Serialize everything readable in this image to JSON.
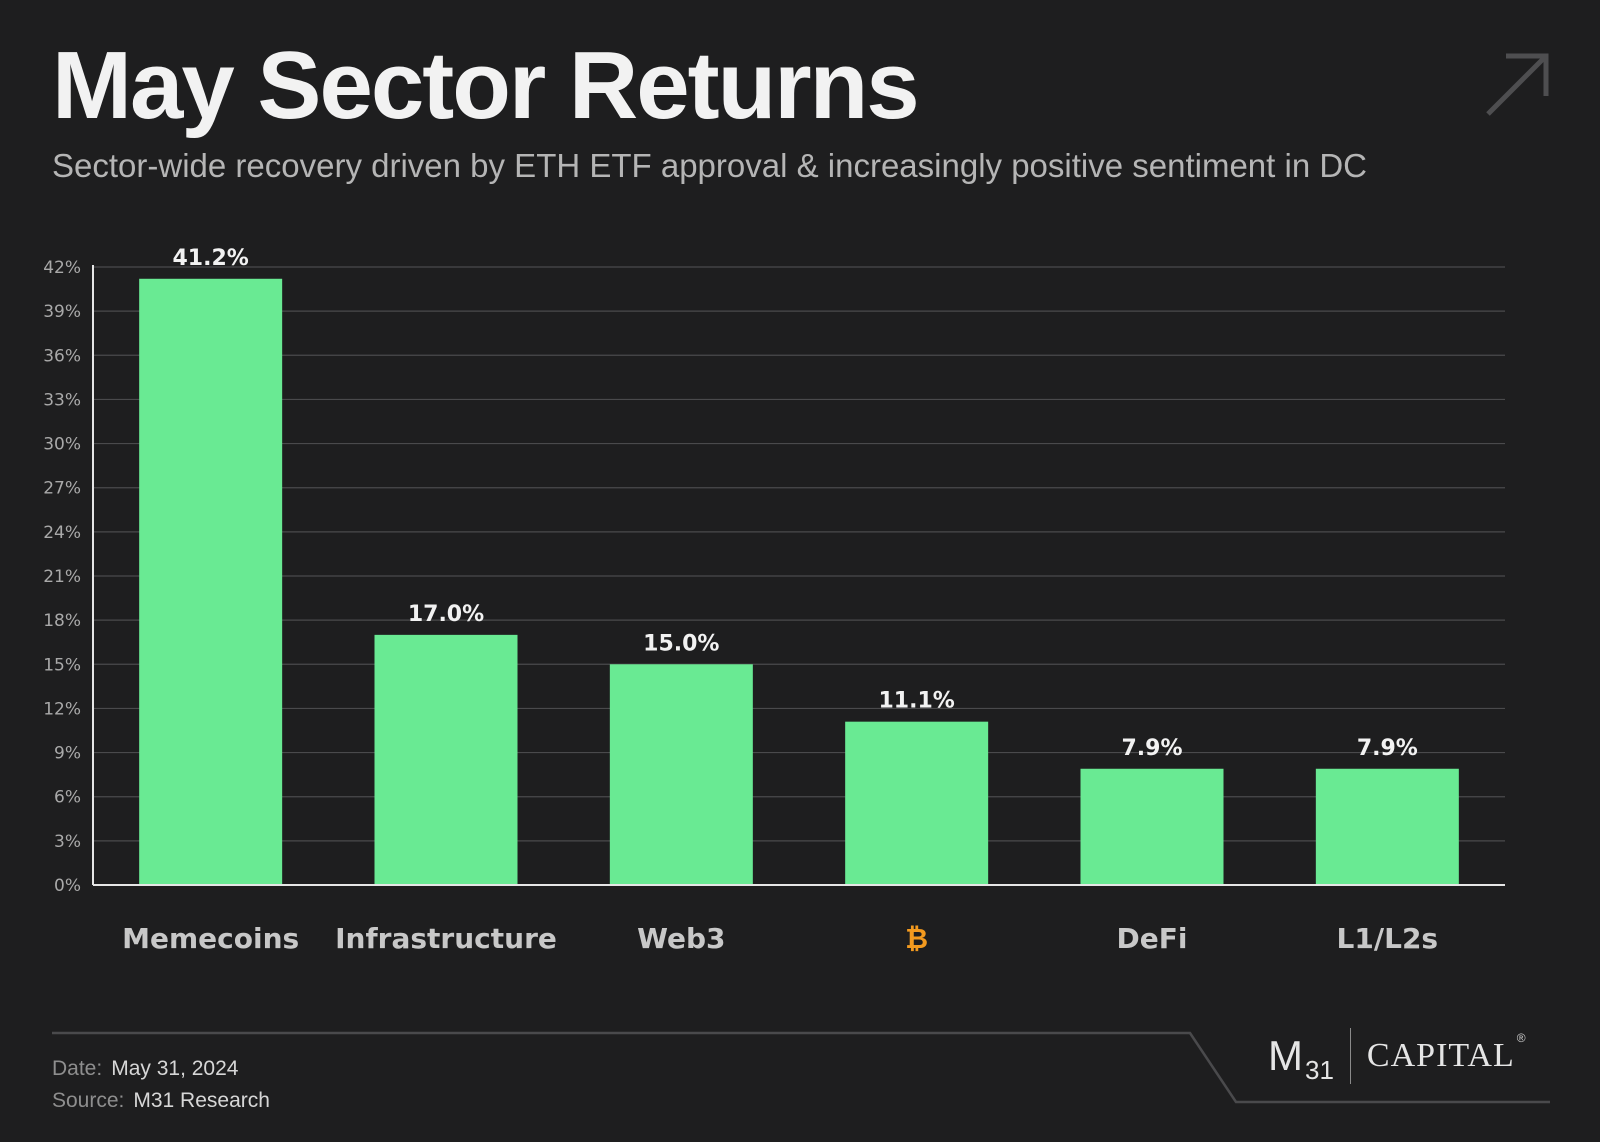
{
  "header": {
    "title": "May Sector Returns",
    "subtitle": "Sector-wide recovery driven by ETH ETF approval & increasingly positive sentiment in DC"
  },
  "chart_data": {
    "type": "bar",
    "categories": [
      "Memecoins",
      "Infrastructure",
      "Web3",
      "₿",
      "DeFi",
      "L1/L2s"
    ],
    "values": [
      41.2,
      17.0,
      15.0,
      11.1,
      7.9,
      7.9
    ],
    "value_labels": [
      "41.2%",
      "17.0%",
      "15.0%",
      "11.1%",
      "7.9%",
      "7.9%"
    ],
    "ylim": [
      0,
      42
    ],
    "y_ticks": [
      "0%",
      "3%",
      "6%",
      "9%",
      "12%",
      "15%",
      "18%",
      "21%",
      "24%",
      "27%",
      "30%",
      "33%",
      "36%",
      "39%",
      "42%"
    ],
    "grid": true,
    "bar_color": "#69ea93",
    "highlight_category_color": "#f39a1f"
  },
  "footer": {
    "date_label": "Date:",
    "date_value": "May 31, 2024",
    "source_label": "Source:",
    "source_value": "M31 Research",
    "logo": {
      "m": "M",
      "num": "31",
      "capital": "CAPITAL",
      "reg": "®"
    }
  },
  "icons": {
    "corner": "arrow-up-right-icon"
  }
}
